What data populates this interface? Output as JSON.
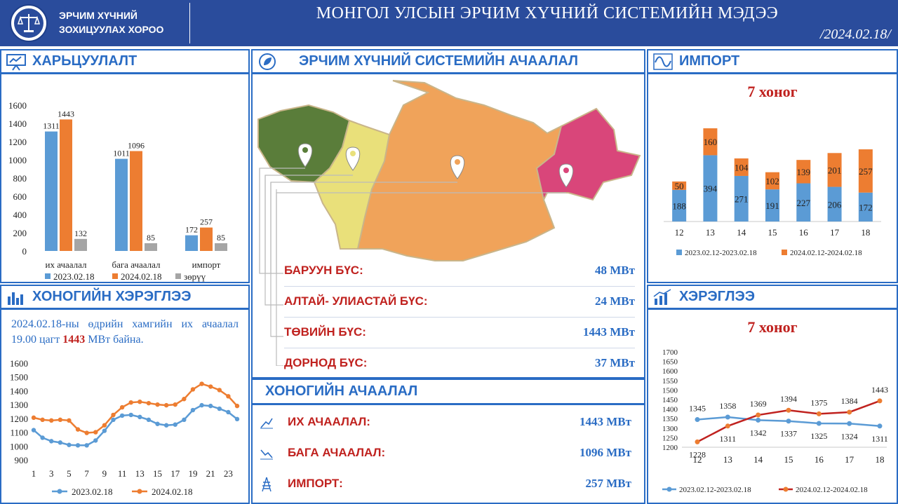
{
  "header": {
    "org_line1": "ЭРЧИМ ХҮЧНИЙ",
    "org_line2": "ЗОХИЦУУЛАХ ХОРОО",
    "title": "МОНГОЛ УЛСЫН ЭРЧИМ ХҮЧНИЙ СИСТЕМИЙН МЭДЭЭ",
    "date": "/2024.02.18/"
  },
  "panels": {
    "compare_title": "ХАРЬЦУУЛАЛТ",
    "system_load_title": "ЭРЧИМ ХҮЧНИЙ СИСТЕМИЙН АЧААЛАЛ",
    "import_title": "ИМПОРТ",
    "import_subtitle": "7 хоног",
    "daily_title": "ХОНОГИЙН ХЭРЭГЛЭЭ",
    "consumption_title": "ХЭРЭГЛЭЭ",
    "consumption_subtitle": "7 хоног",
    "daily_load_title": "ХОНОГИЙН АЧААЛАЛ"
  },
  "daily_note": {
    "prefix": "2024.02.18-ны өдрийн хамгийн их ачаалал 19.00 цагт ",
    "value": "1443",
    "suffix": " МВт байна."
  },
  "regions": [
    {
      "name": "БАРУУН БҮС:",
      "value": "48 МВт"
    },
    {
      "name": "АЛТАЙ- УЛИАСТАЙ БҮС:",
      "value": "24 МВт"
    },
    {
      "name": "ТӨВИЙН БҮС:",
      "value": "1443 МВт"
    },
    {
      "name": "ДОРНОД БҮС:",
      "value": "37 МВт"
    }
  ],
  "daily_load": [
    {
      "name": "ИХ АЧААЛАЛ:",
      "value": "1443 МВт"
    },
    {
      "name": "БАГА АЧААЛАЛ:",
      "value": "1096 МВт"
    },
    {
      "name": "ИМПОРТ:",
      "value": "257 МВт"
    }
  ],
  "colors": {
    "blue": "#5b9bd5",
    "orange": "#ed7d31",
    "gray": "#a5a5a5",
    "red": "#c0221f",
    "accent": "#2a6cc4",
    "header": "#2a4c9c"
  },
  "chart_data": [
    {
      "id": "compare",
      "type": "bar",
      "categories": [
        "их ачаалал",
        "бага ачаалал",
        "импорт"
      ],
      "series": [
        {
          "name": "2023.02.18",
          "values": [
            1311,
            1011,
            172
          ]
        },
        {
          "name": "2024.02.18",
          "values": [
            1443,
            1096,
            257
          ]
        },
        {
          "name": "зөрүү",
          "values": [
            132,
            85,
            85
          ]
        }
      ],
      "y_ticks": [
        0,
        200,
        400,
        600,
        800,
        1000,
        1200,
        1400,
        1600
      ],
      "ylim": [
        0,
        1600
      ]
    },
    {
      "id": "import",
      "type": "bar",
      "stacked": true,
      "categories": [
        "12",
        "13",
        "14",
        "15",
        "16",
        "17",
        "18"
      ],
      "series": [
        {
          "name": "2023.02.12-2023.02.18",
          "values": [
            188,
            394,
            271,
            191,
            227,
            206,
            172
          ]
        },
        {
          "name": "2024.02.12-2024.02.18",
          "values": [
            50,
            160,
            104,
            102,
            139,
            201,
            257
          ]
        }
      ]
    },
    {
      "id": "daily",
      "type": "line",
      "x": [
        1,
        2,
        3,
        4,
        5,
        6,
        7,
        8,
        9,
        10,
        11,
        12,
        13,
        14,
        15,
        16,
        17,
        18,
        19,
        20,
        21,
        22,
        23,
        24
      ],
      "x_ticks": [
        "1",
        "3",
        "5",
        "7",
        "9",
        "11",
        "13",
        "15",
        "17",
        "19",
        "21",
        "23"
      ],
      "series": [
        {
          "name": "2023.02.18",
          "values": [
            1115,
            1060,
            1035,
            1025,
            1008,
            1005,
            1005,
            1040,
            1110,
            1190,
            1220,
            1225,
            1210,
            1190,
            1160,
            1150,
            1155,
            1190,
            1260,
            1295,
            1290,
            1270,
            1245,
            1195
          ]
        },
        {
          "name": "2024.02.18",
          "values": [
            1205,
            1190,
            1185,
            1190,
            1185,
            1120,
            1095,
            1100,
            1150,
            1225,
            1280,
            1315,
            1320,
            1310,
            1300,
            1295,
            1300,
            1340,
            1410,
            1450,
            1430,
            1405,
            1360,
            1290
          ]
        }
      ],
      "y_ticks": [
        900,
        1000,
        1100,
        1200,
        1300,
        1400,
        1500,
        1600
      ],
      "ylim": [
        900,
        1600
      ]
    },
    {
      "id": "consumption",
      "type": "line",
      "categories": [
        "12",
        "13",
        "14",
        "15",
        "16",
        "17",
        "18"
      ],
      "series": [
        {
          "name": "2023.02.12-2023.02.18",
          "values": [
            1345,
            1358,
            1342,
            1337,
            1325,
            1324,
            1311
          ]
        },
        {
          "name": "2024.02.12-2024.02.18",
          "values": [
            1228,
            1311,
            1369,
            1394,
            1375,
            1384,
            1443
          ]
        }
      ],
      "y_ticks": [
        1200,
        1250,
        1300,
        1350,
        1400,
        1450,
        1500,
        1550,
        1600,
        1650,
        1700
      ],
      "ylim": [
        1200,
        1700
      ]
    }
  ]
}
